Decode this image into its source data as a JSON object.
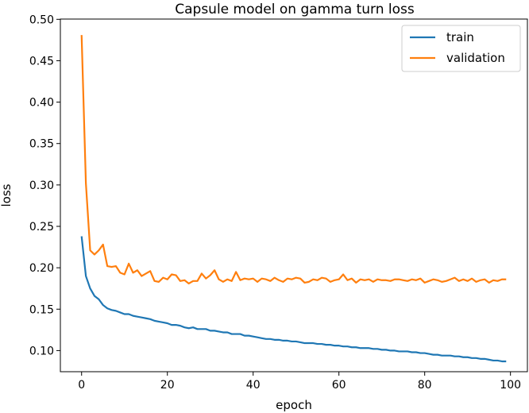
{
  "chart_data": {
    "type": "line",
    "title": "Capsule model on gamma turn loss",
    "xlabel": "epoch",
    "ylabel": "loss",
    "xlim": [
      -4.95,
      103.95
    ],
    "ylim": [
      0.0745,
      0.5003
    ],
    "xticks": [
      0,
      20,
      40,
      60,
      80,
      100
    ],
    "yticks": [
      0.1,
      0.15,
      0.2,
      0.25,
      0.3,
      0.35,
      0.4,
      0.45,
      0.5
    ],
    "xtick_labels": [
      "0",
      "20",
      "40",
      "60",
      "80",
      "100"
    ],
    "ytick_labels": [
      "0.10",
      "0.15",
      "0.20",
      "0.25",
      "0.30",
      "0.35",
      "0.40",
      "0.45",
      "0.50"
    ],
    "grid": false,
    "legend_position": "top-right",
    "x": [
      0,
      1,
      2,
      3,
      4,
      5,
      6,
      7,
      8,
      9,
      10,
      11,
      12,
      13,
      14,
      15,
      16,
      17,
      18,
      19,
      20,
      21,
      22,
      23,
      24,
      25,
      26,
      27,
      28,
      29,
      30,
      31,
      32,
      33,
      34,
      35,
      36,
      37,
      38,
      39,
      40,
      41,
      42,
      43,
      44,
      45,
      46,
      47,
      48,
      49,
      50,
      51,
      52,
      53,
      54,
      55,
      56,
      57,
      58,
      59,
      60,
      61,
      62,
      63,
      64,
      65,
      66,
      67,
      68,
      69,
      70,
      71,
      72,
      73,
      74,
      75,
      76,
      77,
      78,
      79,
      80,
      81,
      82,
      83,
      84,
      85,
      86,
      87,
      88,
      89,
      90,
      91,
      92,
      93,
      94,
      95,
      96,
      97,
      98,
      99
    ],
    "series": [
      {
        "name": "train",
        "color": "#1f77b4",
        "values": [
          0.238,
          0.19,
          0.175,
          0.166,
          0.162,
          0.155,
          0.151,
          0.149,
          0.148,
          0.146,
          0.144,
          0.144,
          0.142,
          0.141,
          0.14,
          0.139,
          0.138,
          0.136,
          0.135,
          0.134,
          0.133,
          0.131,
          0.131,
          0.13,
          0.128,
          0.127,
          0.128,
          0.126,
          0.126,
          0.126,
          0.124,
          0.124,
          0.123,
          0.122,
          0.122,
          0.12,
          0.12,
          0.12,
          0.118,
          0.118,
          0.117,
          0.116,
          0.115,
          0.114,
          0.114,
          0.113,
          0.113,
          0.112,
          0.112,
          0.111,
          0.111,
          0.11,
          0.109,
          0.109,
          0.109,
          0.108,
          0.108,
          0.107,
          0.107,
          0.106,
          0.106,
          0.105,
          0.105,
          0.104,
          0.104,
          0.103,
          0.103,
          0.103,
          0.102,
          0.102,
          0.101,
          0.101,
          0.1,
          0.1,
          0.099,
          0.099,
          0.099,
          0.098,
          0.098,
          0.097,
          0.097,
          0.096,
          0.095,
          0.095,
          0.094,
          0.094,
          0.094,
          0.093,
          0.093,
          0.092,
          0.092,
          0.091,
          0.091,
          0.09,
          0.09,
          0.089,
          0.088,
          0.088,
          0.087,
          0.087
        ]
      },
      {
        "name": "validation",
        "color": "#ff7f0e",
        "values": [
          0.481,
          0.302,
          0.221,
          0.216,
          0.221,
          0.228,
          0.202,
          0.201,
          0.202,
          0.194,
          0.192,
          0.205,
          0.194,
          0.197,
          0.19,
          0.193,
          0.196,
          0.184,
          0.183,
          0.188,
          0.186,
          0.192,
          0.191,
          0.184,
          0.185,
          0.181,
          0.184,
          0.184,
          0.193,
          0.187,
          0.191,
          0.197,
          0.186,
          0.183,
          0.186,
          0.184,
          0.195,
          0.185,
          0.187,
          0.186,
          0.187,
          0.183,
          0.187,
          0.186,
          0.184,
          0.188,
          0.185,
          0.183,
          0.187,
          0.186,
          0.188,
          0.187,
          0.182,
          0.183,
          0.186,
          0.185,
          0.188,
          0.187,
          0.183,
          0.185,
          0.186,
          0.192,
          0.185,
          0.187,
          0.182,
          0.186,
          0.185,
          0.186,
          0.183,
          0.186,
          0.185,
          0.185,
          0.184,
          0.186,
          0.186,
          0.185,
          0.184,
          0.186,
          0.185,
          0.187,
          0.182,
          0.184,
          0.186,
          0.185,
          0.183,
          0.184,
          0.186,
          0.188,
          0.184,
          0.186,
          0.184,
          0.187,
          0.183,
          0.185,
          0.186,
          0.182,
          0.185,
          0.184,
          0.186,
          0.186
        ]
      }
    ]
  }
}
